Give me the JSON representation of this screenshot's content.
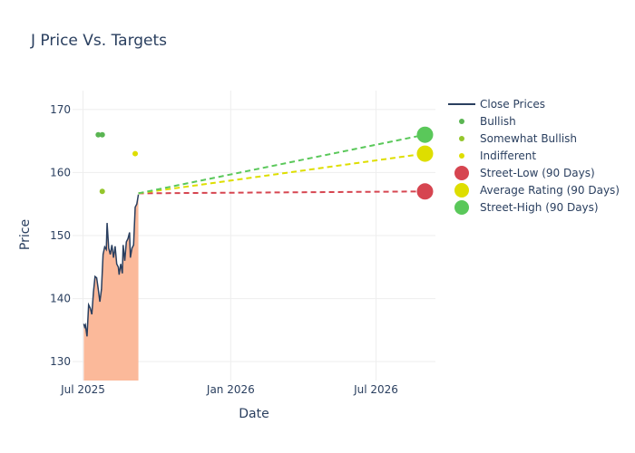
{
  "chart_data": {
    "type": "line",
    "title": "J Price Vs. Targets",
    "xlabel": "Date",
    "ylabel": "Price",
    "ylim": [
      127,
      173
    ],
    "xlim": [
      "2025-06-18",
      "2026-09-13"
    ],
    "x_ticks": [
      {
        "date": "2025-07-01",
        "label": "Jul 2025"
      },
      {
        "date": "2026-01-01",
        "label": "Jan 2026"
      },
      {
        "date": "2026-07-01",
        "label": "Jul 2026"
      }
    ],
    "y_ticks": [
      130,
      140,
      150,
      160,
      170
    ],
    "grid": true,
    "legend_position": "top-right",
    "close_prices": {
      "name": "Close Prices",
      "color": "#2a3f5f",
      "fill_color": "#fbb99a",
      "points": [
        [
          "2025-07-02",
          136.0
        ],
        [
          "2025-07-03",
          135.5
        ],
        [
          "2025-07-04",
          135.8
        ],
        [
          "2025-07-06",
          134.0
        ],
        [
          "2025-07-08",
          139.0
        ],
        [
          "2025-07-10",
          138.5
        ],
        [
          "2025-07-12",
          137.5
        ],
        [
          "2025-07-14",
          141.0
        ],
        [
          "2025-07-16",
          143.5
        ],
        [
          "2025-07-18",
          143.3
        ],
        [
          "2025-07-20",
          141.5
        ],
        [
          "2025-07-22",
          139.5
        ],
        [
          "2025-07-24",
          141.5
        ],
        [
          "2025-07-26",
          147.0
        ],
        [
          "2025-07-28",
          148.2
        ],
        [
          "2025-07-30",
          147.8
        ],
        [
          "2025-07-31",
          152.0
        ],
        [
          "2025-08-02",
          148.0
        ],
        [
          "2025-08-04",
          147.0
        ],
        [
          "2025-08-06",
          148.5
        ],
        [
          "2025-08-08",
          146.5
        ],
        [
          "2025-08-10",
          148.3
        ],
        [
          "2025-08-12",
          145.5
        ],
        [
          "2025-08-14",
          145.0
        ],
        [
          "2025-08-15",
          143.8
        ],
        [
          "2025-08-17",
          145.5
        ],
        [
          "2025-08-19",
          144.0
        ],
        [
          "2025-08-20",
          148.5
        ],
        [
          "2025-08-22",
          146.0
        ],
        [
          "2025-08-24",
          149.0
        ],
        [
          "2025-08-26",
          149.5
        ],
        [
          "2025-08-28",
          150.5
        ],
        [
          "2025-08-29",
          146.5
        ],
        [
          "2025-08-31",
          148.0
        ],
        [
          "2025-09-02",
          148.5
        ],
        [
          "2025-09-04",
          154.5
        ],
        [
          "2025-09-06",
          155.0
        ],
        [
          "2025-09-08",
          156.5
        ]
      ]
    },
    "ratings": [
      {
        "name": "Bullish",
        "color": "#5ab552",
        "points": [
          [
            "2025-07-20",
            166
          ],
          [
            "2025-07-25",
            166
          ]
        ]
      },
      {
        "name": "Somewhat Bullish",
        "color": "#94c62c",
        "points": [
          [
            "2025-07-25",
            157
          ]
        ]
      },
      {
        "name": "Indifferent",
        "color": "#dede00",
        "points": [
          [
            "2025-09-04",
            163
          ]
        ]
      }
    ],
    "targets": [
      {
        "name": "Street-Low (90 Days)",
        "color": "#d64550",
        "start": [
          "2025-09-08",
          156.7
        ],
        "end": [
          "2026-08-31",
          157.0
        ]
      },
      {
        "name": "Average Rating (90 Days)",
        "color": "#dede00",
        "start": [
          "2025-09-08",
          156.7
        ],
        "end": [
          "2026-08-31",
          163.0
        ]
      },
      {
        "name": "Street-High (90 Days)",
        "color": "#5ac85a",
        "start": [
          "2025-09-08",
          156.7
        ],
        "end": [
          "2026-08-31",
          166.0
        ]
      }
    ]
  }
}
